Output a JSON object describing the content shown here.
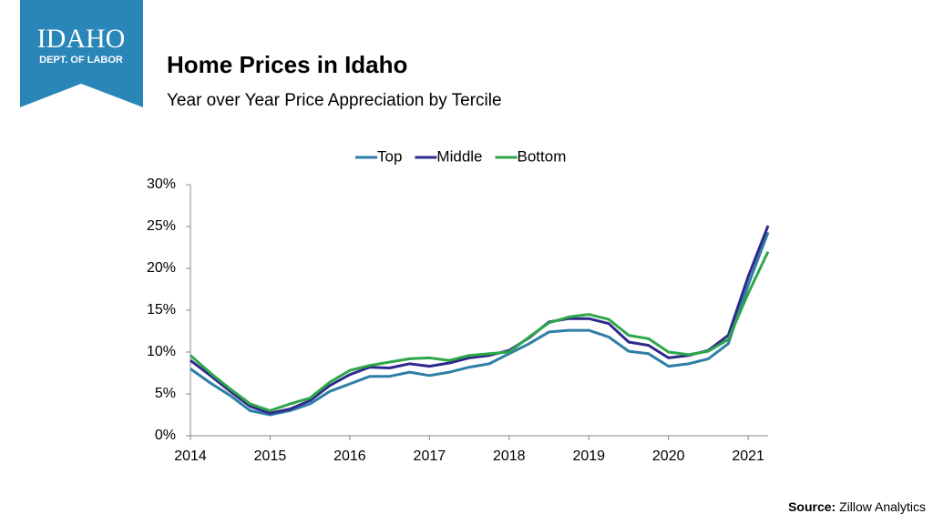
{
  "logo": {
    "line1": "IDAHO",
    "line2": "DEPT. OF LABOR"
  },
  "header": {
    "title": "Home Prices in Idaho",
    "subtitle": "Year over Year Price Appreciation by Tercile"
  },
  "source": {
    "label": "Source:",
    "text": "Zillow Analytics"
  },
  "chart_data": {
    "type": "line",
    "x": [
      2014,
      2014.25,
      2014.5,
      2014.75,
      2015,
      2015.25,
      2015.5,
      2015.75,
      2016,
      2016.25,
      2016.5,
      2016.75,
      2017,
      2017.25,
      2017.5,
      2017.75,
      2018,
      2018.25,
      2018.5,
      2018.75,
      2019,
      2019.25,
      2019.5,
      2019.75,
      2020,
      2020.25,
      2020.5,
      2020.75,
      2021,
      2021.25
    ],
    "series": [
      {
        "name": "Top",
        "color": "#2e7fa6",
        "values": [
          8.0,
          6.3,
          4.8,
          3.0,
          2.5,
          3.0,
          3.8,
          5.3,
          6.2,
          7.1,
          7.1,
          7.6,
          7.2,
          7.6,
          8.2,
          8.6,
          9.8,
          11.0,
          12.4,
          12.6,
          12.6,
          11.8,
          10.1,
          9.8,
          8.3,
          8.6,
          9.2,
          11.0,
          18.0,
          24.3
        ]
      },
      {
        "name": "Middle",
        "color": "#2e2a8c",
        "values": [
          9.0,
          7.2,
          5.3,
          3.5,
          2.7,
          3.2,
          4.2,
          6.0,
          7.3,
          8.2,
          8.1,
          8.6,
          8.3,
          8.7,
          9.3,
          9.6,
          10.2,
          11.7,
          13.6,
          14.0,
          14.0,
          13.4,
          11.2,
          10.8,
          9.3,
          9.6,
          10.2,
          12.0,
          19.0,
          25.1
        ]
      },
      {
        "name": "Bottom",
        "color": "#2ea64a",
        "values": [
          9.6,
          7.5,
          5.6,
          3.8,
          3.0,
          3.8,
          4.5,
          6.4,
          7.8,
          8.4,
          8.8,
          9.2,
          9.3,
          9.0,
          9.6,
          9.8,
          10.0,
          11.8,
          13.5,
          14.2,
          14.5,
          13.9,
          12.0,
          11.6,
          10.0,
          9.7,
          10.1,
          11.5,
          17.0,
          22.0
        ]
      }
    ],
    "xlim": [
      2014,
      2021.25
    ],
    "xticks": [
      2014,
      2015,
      2016,
      2017,
      2018,
      2019,
      2020,
      2021
    ],
    "ylim": [
      0,
      30
    ],
    "yticks": [
      {
        "value": 0,
        "label": "0%"
      },
      {
        "value": 5,
        "label": "5%"
      },
      {
        "value": 10,
        "label": "10%"
      },
      {
        "value": 15,
        "label": "15%"
      },
      {
        "value": 20,
        "label": "20%"
      },
      {
        "value": 25,
        "label": "25%"
      },
      {
        "value": 30,
        "label": "30%"
      }
    ],
    "legend": "top"
  }
}
